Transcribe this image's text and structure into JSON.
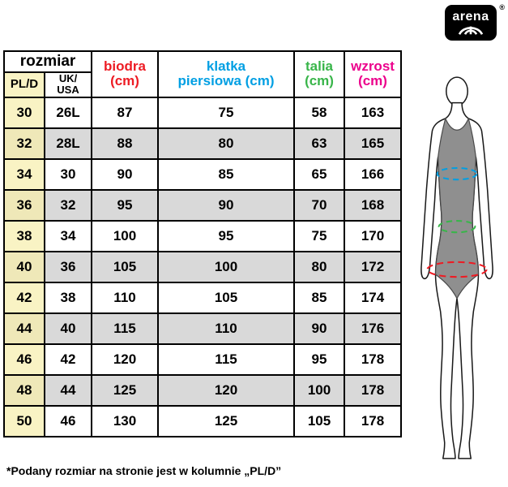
{
  "brand": {
    "name": "arena",
    "registered": "®"
  },
  "table": {
    "headers": {
      "rozmiar": "rozmiar",
      "pl_d": "PL/D",
      "uk_usa": "UK/\nUSA",
      "biodra": "biodra (cm)",
      "klatka": "klatka\npiersiowa (cm)",
      "talia": "talia (cm)",
      "wzrost": "wzrost (cm)"
    }
  },
  "chart_data": {
    "type": "table",
    "columns": [
      "PL/D",
      "UK/USA",
      "biodra (cm)",
      "klatka piersiowa (cm)",
      "talia (cm)",
      "wzrost (cm)"
    ],
    "rows": [
      [
        "30",
        "26L",
        "87",
        "75",
        "58",
        "163"
      ],
      [
        "32",
        "28L",
        "88",
        "80",
        "63",
        "165"
      ],
      [
        "34",
        "30",
        "90",
        "85",
        "65",
        "166"
      ],
      [
        "36",
        "32",
        "95",
        "90",
        "70",
        "168"
      ],
      [
        "38",
        "34",
        "100",
        "95",
        "75",
        "170"
      ],
      [
        "40",
        "36",
        "105",
        "100",
        "80",
        "172"
      ],
      [
        "42",
        "38",
        "110",
        "105",
        "85",
        "174"
      ],
      [
        "44",
        "40",
        "115",
        "110",
        "90",
        "176"
      ],
      [
        "46",
        "42",
        "120",
        "115",
        "95",
        "178"
      ],
      [
        "48",
        "44",
        "125",
        "120",
        "100",
        "178"
      ],
      [
        "50",
        "46",
        "130",
        "125",
        "105",
        "178"
      ]
    ]
  },
  "footnote": "*Podany rozmiar na stronie jest w kolumnie „PL/D”",
  "colors": {
    "header_biodra": "#ed1c24",
    "header_klatka_piersiowa": "#009fe3",
    "header_talia": "#39b54a",
    "header_wzrost": "#ec008c",
    "size_column_bg": "#f9f3c4",
    "alt_row_bg": "#d9d9d9",
    "chest_measure": "#009fe3",
    "waist_measure": "#39b54a",
    "hip_measure": "#ed1c24",
    "swimsuit": "#8f8f8f"
  }
}
